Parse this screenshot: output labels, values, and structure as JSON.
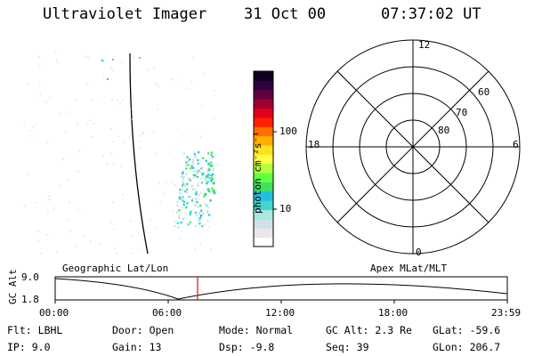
{
  "header": {
    "instrument": "Ultraviolet Imager",
    "date": "31 Oct 00",
    "time": "07:37:02 UT"
  },
  "colorbar": {
    "unit_label": "photon cm⁻²s⁻¹",
    "tick_labels": [
      "100",
      "10"
    ],
    "colors": [
      "#ffffff",
      "#e8e8e8",
      "#cfe0e8",
      "#a8e8e0",
      "#40d8c8",
      "#20c0e0",
      "#40e060",
      "#60ff40",
      "#b0ff40",
      "#ffff40",
      "#ffe020",
      "#ffb000",
      "#ff7000",
      "#ff2000",
      "#e00020",
      "#a00030",
      "#600040",
      "#300040",
      "#100020"
    ]
  },
  "polar_plot": {
    "mlt_labels": {
      "top": "12",
      "right": "6",
      "bottom": "0",
      "left": "18"
    },
    "lat_labels": [
      "60",
      "70",
      "80"
    ]
  },
  "altitude_plot": {
    "y_axis_label": "GC Alt",
    "y_ticks": [
      "9.0",
      "1.8"
    ],
    "left_caption": "Geographic Lat/Lon",
    "right_caption": "Apex MLat/MLT",
    "x_ticks": [
      "00:00",
      "06:00",
      "12:00",
      "18:00",
      "23:59"
    ],
    "marker_color": "#e02020"
  },
  "footer": {
    "rows": [
      [
        {
          "label": "Flt:",
          "value": "LBHL"
        },
        {
          "label": "Door:",
          "value": "Open"
        },
        {
          "label": "Mode:",
          "value": "Normal"
        },
        {
          "label": "GC Alt:",
          "value": "2.3 Re"
        },
        {
          "label": "GLat:",
          "value": "-59.6"
        }
      ],
      [
        {
          "label": "IP:",
          "value": "9.0"
        },
        {
          "label": "Gain:",
          "value": "13"
        },
        {
          "label": "Dsp:",
          "value": "-9.8"
        },
        {
          "label": "Seq:",
          "value": "39"
        },
        {
          "label": "GLon:",
          "value": "206.7"
        }
      ]
    ]
  }
}
